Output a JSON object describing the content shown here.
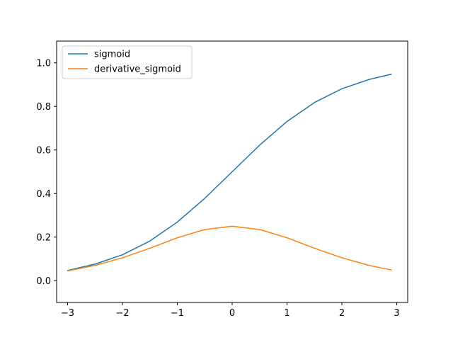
{
  "chart_data": {
    "type": "line",
    "title": "",
    "xlabel": "",
    "ylabel": "",
    "xlim": [
      -3.2,
      3.2
    ],
    "ylim": [
      -0.1,
      1.1
    ],
    "xticks": [
      -3,
      -2,
      -1,
      0,
      1,
      2,
      3
    ],
    "xtick_labels": [
      "−3",
      "−2",
      "−1",
      "0",
      "1",
      "2",
      "3"
    ],
    "yticks": [
      0.0,
      0.2,
      0.4,
      0.6,
      0.8,
      1.0
    ],
    "ytick_labels": [
      "0.0",
      "0.2",
      "0.4",
      "0.6",
      "0.8",
      "1.0"
    ],
    "grid": false,
    "legend_position": "top-left",
    "series": [
      {
        "name": "sigmoid",
        "color": "#1f77b4",
        "x": [
          -3.0,
          -2.5,
          -2.0,
          -1.5,
          -1.0,
          -0.5,
          0.0,
          0.5,
          1.0,
          1.5,
          2.0,
          2.5,
          2.9
        ],
        "y": [
          0.047,
          0.076,
          0.119,
          0.182,
          0.269,
          0.378,
          0.5,
          0.622,
          0.731,
          0.818,
          0.881,
          0.924,
          0.948
        ]
      },
      {
        "name": "derivative_sigmoid",
        "color": "#ff7f0e",
        "x": [
          -3.0,
          -2.5,
          -2.0,
          -1.5,
          -1.0,
          -0.5,
          0.0,
          0.5,
          1.0,
          1.5,
          2.0,
          2.5,
          2.9
        ],
        "y": [
          0.045,
          0.07,
          0.105,
          0.149,
          0.197,
          0.235,
          0.25,
          0.235,
          0.197,
          0.149,
          0.105,
          0.07,
          0.049
        ]
      }
    ]
  }
}
